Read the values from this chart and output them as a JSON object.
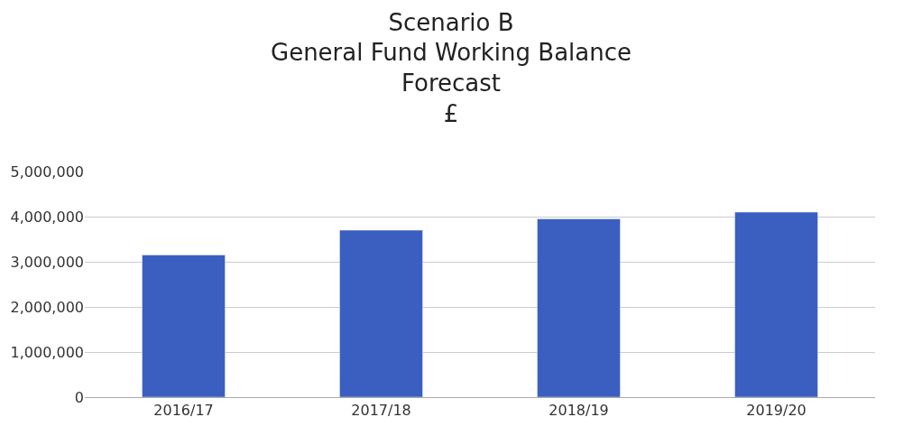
{
  "chart_data": {
    "type": "bar",
    "title": "Scenario B\nGeneral Fund Working Balance\nForecast\n£",
    "categories": [
      "2016/17",
      "2017/18",
      "2018/19",
      "2019/20"
    ],
    "values": [
      3150000,
      3700000,
      3950000,
      4100000
    ],
    "color": "#3b5fc0",
    "ylim": [
      0,
      5000000
    ],
    "yticks": [
      {
        "value": 0,
        "label": "0"
      },
      {
        "value": 1000000,
        "label": "1,000,000"
      },
      {
        "value": 2000000,
        "label": "2,000,000"
      },
      {
        "value": 3000000,
        "label": "3,000,000"
      },
      {
        "value": 4000000,
        "label": "4,000,000"
      },
      {
        "value": 5000000,
        "label": "5,000,000"
      }
    ],
    "grid": "y"
  }
}
